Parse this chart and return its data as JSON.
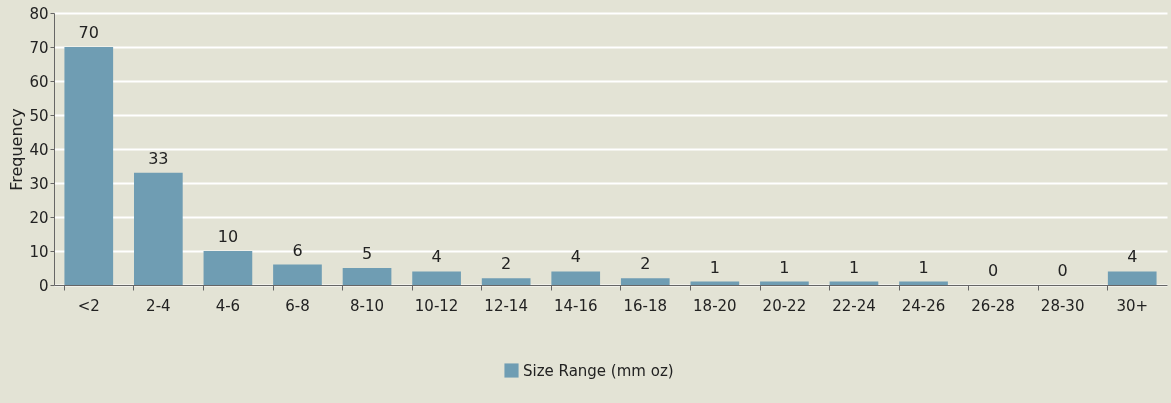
{
  "chart_data": {
    "type": "bar",
    "ylabel": "Frequency",
    "categories": [
      "<2",
      "2-4",
      "4-6",
      "6-8",
      "8-10",
      "10-12",
      "12-14",
      "14-16",
      "16-18",
      "18-20",
      "20-22",
      "22-24",
      "24-26",
      "26-28",
      "28-30",
      "30+"
    ],
    "series": [
      {
        "name": "Size Range (mm oz)",
        "color": "#6f9db3",
        "values": [
          70,
          33,
          10,
          6,
          5,
          4,
          2,
          4,
          2,
          1,
          1,
          1,
          1,
          0,
          0,
          4
        ]
      }
    ],
    "ylim": [
      0,
      80
    ],
    "yticks": [
      0,
      10,
      20,
      30,
      40,
      50,
      60,
      70,
      80
    ],
    "grid": "y",
    "legend": "bottom",
    "data_labels": true
  }
}
